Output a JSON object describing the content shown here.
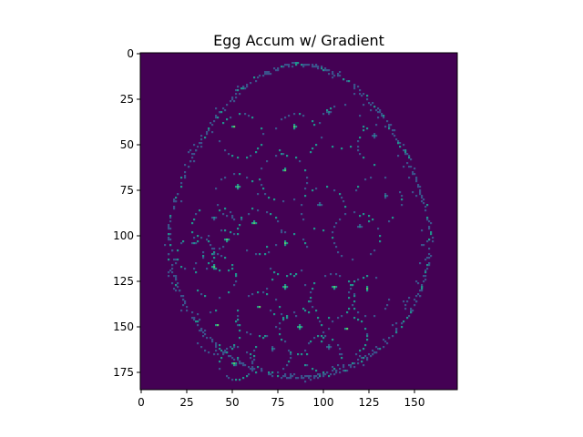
{
  "chart_data": {
    "type": "heatmap",
    "title": "Egg Accum w/ Gradient",
    "xlabel": "",
    "ylabel": "",
    "xlim": [
      0,
      174
    ],
    "ylim": [
      185,
      0
    ],
    "x_ticks": [
      0,
      25,
      50,
      75,
      100,
      125,
      150
    ],
    "y_ticks": [
      0,
      25,
      50,
      75,
      100,
      125,
      150,
      175
    ],
    "grid": false,
    "colormap": "viridis",
    "colors": {
      "background": "#440154",
      "low": "#3b528b",
      "mid": "#21918c",
      "high": "#5ec962"
    },
    "egg_outline": {
      "center": [
        87,
        99
      ],
      "semi_axis_x": 72,
      "semi_axis_y_top": 93,
      "semi_axis_y_bottom": 79,
      "value": 0.55
    },
    "hotspots": [
      {
        "x": 51,
        "y": 40,
        "value": 1.0
      },
      {
        "x": 84,
        "y": 40,
        "value": 1.0
      },
      {
        "x": 103,
        "y": 32,
        "value": 0.8
      },
      {
        "x": 128,
        "y": 45,
        "value": 0.8
      },
      {
        "x": 79,
        "y": 64,
        "value": 1.0
      },
      {
        "x": 53,
        "y": 73,
        "value": 0.9
      },
      {
        "x": 134,
        "y": 78,
        "value": 0.8
      },
      {
        "x": 98,
        "y": 83,
        "value": 0.8
      },
      {
        "x": 40,
        "y": 90,
        "value": 0.7
      },
      {
        "x": 62,
        "y": 93,
        "value": 1.0
      },
      {
        "x": 120,
        "y": 95,
        "value": 0.7
      },
      {
        "x": 47,
        "y": 102,
        "value": 0.9
      },
      {
        "x": 79,
        "y": 104,
        "value": 1.0
      },
      {
        "x": 29,
        "y": 104,
        "value": 0.7
      },
      {
        "x": 40,
        "y": 117,
        "value": 1.0
      },
      {
        "x": 79,
        "y": 128,
        "value": 1.0
      },
      {
        "x": 106,
        "y": 128,
        "value": 0.9
      },
      {
        "x": 124,
        "y": 129,
        "value": 1.0
      },
      {
        "x": 65,
        "y": 139,
        "value": 1.0
      },
      {
        "x": 42,
        "y": 149,
        "value": 1.0
      },
      {
        "x": 87,
        "y": 150,
        "value": 0.9
      },
      {
        "x": 113,
        "y": 151,
        "value": 0.9
      },
      {
        "x": 103,
        "y": 161,
        "value": 0.7
      },
      {
        "x": 72,
        "y": 162,
        "value": 0.8
      },
      {
        "x": 51,
        "y": 170,
        "value": 0.9
      },
      {
        "x": 90,
        "y": 171,
        "value": 0.7
      }
    ],
    "circles": [
      {
        "x": 55,
        "y": 45,
        "r": 12
      },
      {
        "x": 85,
        "y": 45,
        "r": 12
      },
      {
        "x": 110,
        "y": 40,
        "r": 12
      },
      {
        "x": 130,
        "y": 50,
        "r": 11
      },
      {
        "x": 78,
        "y": 68,
        "r": 13
      },
      {
        "x": 52,
        "y": 78,
        "r": 12
      },
      {
        "x": 130,
        "y": 80,
        "r": 13
      },
      {
        "x": 100,
        "y": 85,
        "r": 12
      },
      {
        "x": 40,
        "y": 95,
        "r": 12
      },
      {
        "x": 65,
        "y": 98,
        "r": 12
      },
      {
        "x": 118,
        "y": 100,
        "r": 13
      },
      {
        "x": 45,
        "y": 108,
        "r": 11
      },
      {
        "x": 80,
        "y": 110,
        "r": 12
      },
      {
        "x": 30,
        "y": 110,
        "r": 10
      },
      {
        "x": 40,
        "y": 122,
        "r": 12
      },
      {
        "x": 80,
        "y": 133,
        "r": 12
      },
      {
        "x": 105,
        "y": 133,
        "r": 12
      },
      {
        "x": 125,
        "y": 133,
        "r": 11
      },
      {
        "x": 65,
        "y": 143,
        "r": 12
      },
      {
        "x": 42,
        "y": 153,
        "r": 12
      },
      {
        "x": 88,
        "y": 153,
        "r": 12
      },
      {
        "x": 113,
        "y": 155,
        "r": 11
      },
      {
        "x": 100,
        "y": 165,
        "r": 10
      },
      {
        "x": 72,
        "y": 165,
        "r": 10
      },
      {
        "x": 52,
        "y": 170,
        "r": 9
      }
    ]
  }
}
